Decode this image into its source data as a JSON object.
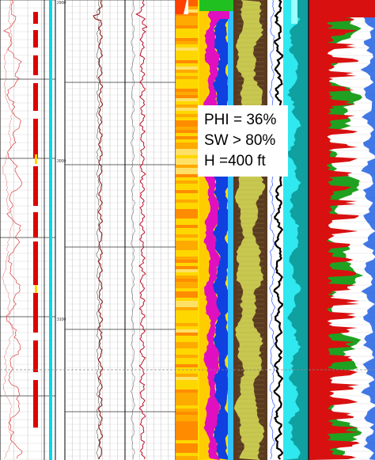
{
  "chart_data": {
    "type": "well-log",
    "depth_ticks": [
      "2900",
      "3000",
      "3100"
    ],
    "annotation": {
      "lines": [
        "PHI = 36%",
        "SW > 80%",
        "H =400 ft"
      ]
    },
    "interpretation": {
      "porosity_percent": 36,
      "water_saturation_min_percent": 80,
      "thickness_ft": 400
    },
    "colors": {
      "gamma_curve": "#d94040",
      "flag_red": "#e00000",
      "flag_cyan": "#00d8e8",
      "resistivity_curve": "#8b1a1a",
      "porosity_yellow": "#ffd700",
      "porosity_orange": "#ff8c00",
      "magenta": "#e010c0",
      "blue": "#1040e0",
      "olive": "#c8c850",
      "teal": "#10a0a0",
      "fill_red": "#d81010",
      "fill_green": "#20a020",
      "fill_blue": "#2060e0",
      "dashed_line": "#888888"
    }
  }
}
